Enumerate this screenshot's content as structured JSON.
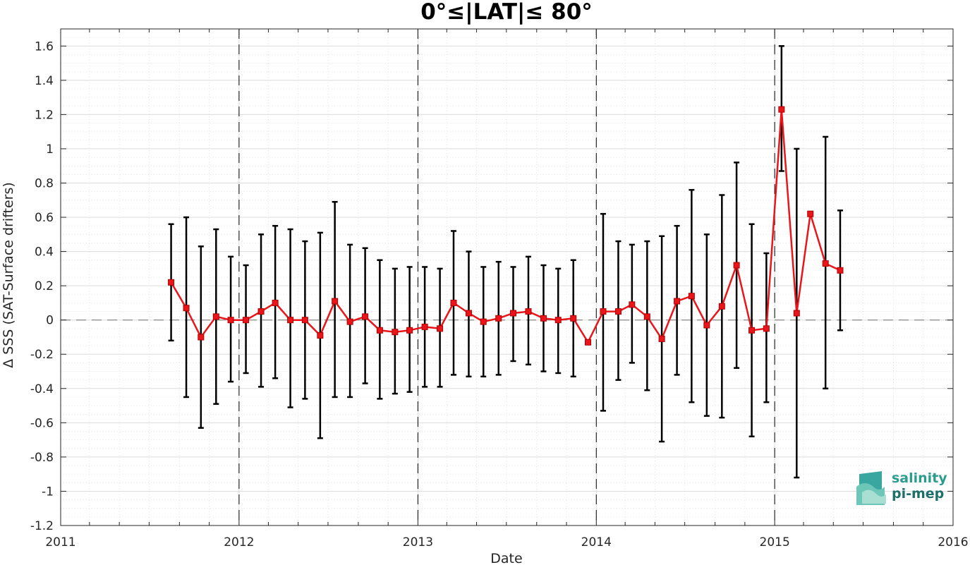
{
  "chart_data": {
    "type": "line",
    "title": "0°≤|LAT|≤ 80°",
    "xlabel": "Date",
    "ylabel": "Δ SSS (SAT-Surface drifters)",
    "xlim": [
      "2011-01-01",
      "2016-01-01"
    ],
    "ylim": [
      -1.2,
      1.7
    ],
    "x_ticks": [
      "2011",
      "2012",
      "2013",
      "2014",
      "2015",
      "2016"
    ],
    "y_ticks": [
      "1.6",
      "1.4",
      "1.2",
      "1",
      "0.8",
      "0.6",
      "0.4",
      "0.2",
      "0",
      "-0.2",
      "-0.4",
      "-0.6",
      "-0.8",
      "-1",
      "-1.2"
    ],
    "grid": true,
    "zero_line": 0,
    "year_separators": [
      "2012",
      "2013",
      "2014",
      "2015"
    ],
    "colors": {
      "series": "#e8151b",
      "errorbars": "#000000",
      "zero_line": "#808080",
      "logo": "#2a9d8f"
    },
    "series": [
      {
        "x": [
          "2011-08-15",
          "2011-09-15",
          "2011-10-15",
          "2011-11-15",
          "2011-12-15",
          "2012-01-15",
          "2012-02-15",
          "2012-03-15",
          "2012-04-15",
          "2012-05-15",
          "2012-06-15",
          "2012-07-15",
          "2012-08-15",
          "2012-09-15",
          "2012-10-15",
          "2012-11-15",
          "2012-12-15",
          "2013-01-15",
          "2013-02-15",
          "2013-03-15",
          "2013-04-15",
          "2013-05-15",
          "2013-06-15",
          "2013-07-15",
          "2013-08-15",
          "2013-09-15",
          "2013-10-15",
          "2013-11-15",
          "2013-12-15",
          "2014-01-15",
          "2014-02-15",
          "2014-03-15",
          "2014-04-15",
          "2014-05-15",
          "2014-06-15",
          "2014-07-15",
          "2014-08-15",
          "2014-09-15",
          "2014-10-15",
          "2014-11-15",
          "2014-12-15",
          "2015-01-15",
          "2015-02-15",
          "2015-03-15",
          "2015-04-15",
          "2015-05-15"
        ],
        "y": [
          0.22,
          0.07,
          -0.1,
          0.02,
          0.0,
          -0.0,
          0.05,
          0.1,
          0.0,
          -0.0,
          -0.09,
          0.11,
          -0.01,
          0.02,
          -0.06,
          -0.07,
          -0.06,
          -0.04,
          -0.05,
          0.1,
          0.04,
          -0.01,
          0.01,
          0.04,
          0.05,
          0.01,
          -0.0,
          0.01,
          -0.13,
          0.05,
          0.05,
          0.09,
          0.02,
          -0.11,
          0.11,
          0.14,
          -0.03,
          0.08,
          0.32,
          -0.06,
          -0.05,
          1.23,
          0.04,
          0.62,
          0.33,
          0.29
        ],
        "err_high": [
          0.56,
          0.6,
          0.43,
          0.53,
          0.37,
          0.32,
          0.5,
          0.55,
          0.53,
          0.46,
          0.51,
          0.69,
          0.44,
          0.42,
          0.35,
          0.3,
          0.31,
          0.31,
          0.3,
          0.52,
          0.4,
          0.31,
          0.34,
          0.31,
          0.37,
          0.32,
          0.3,
          0.35,
          -0.13,
          0.62,
          0.46,
          0.44,
          0.46,
          0.49,
          0.55,
          0.76,
          0.5,
          0.73,
          0.92,
          0.56,
          0.39,
          1.6,
          1.0,
          0.62,
          1.07,
          0.64
        ],
        "err_low": [
          -0.12,
          -0.45,
          -0.63,
          -0.49,
          -0.36,
          -0.31,
          -0.39,
          -0.34,
          -0.51,
          -0.46,
          -0.69,
          -0.45,
          -0.45,
          -0.37,
          -0.46,
          -0.43,
          -0.42,
          -0.39,
          -0.39,
          -0.32,
          -0.33,
          -0.33,
          -0.32,
          -0.24,
          -0.26,
          -0.3,
          -0.31,
          -0.33,
          -0.13,
          -0.53,
          -0.35,
          -0.25,
          -0.41,
          -0.71,
          -0.32,
          -0.48,
          -0.56,
          -0.57,
          -0.28,
          -0.68,
          -0.48,
          0.87,
          -0.92,
          0.62,
          -0.4,
          -0.06
        ]
      }
    ]
  },
  "logo": {
    "line1": "salinity",
    "line2": "pi-mep"
  }
}
